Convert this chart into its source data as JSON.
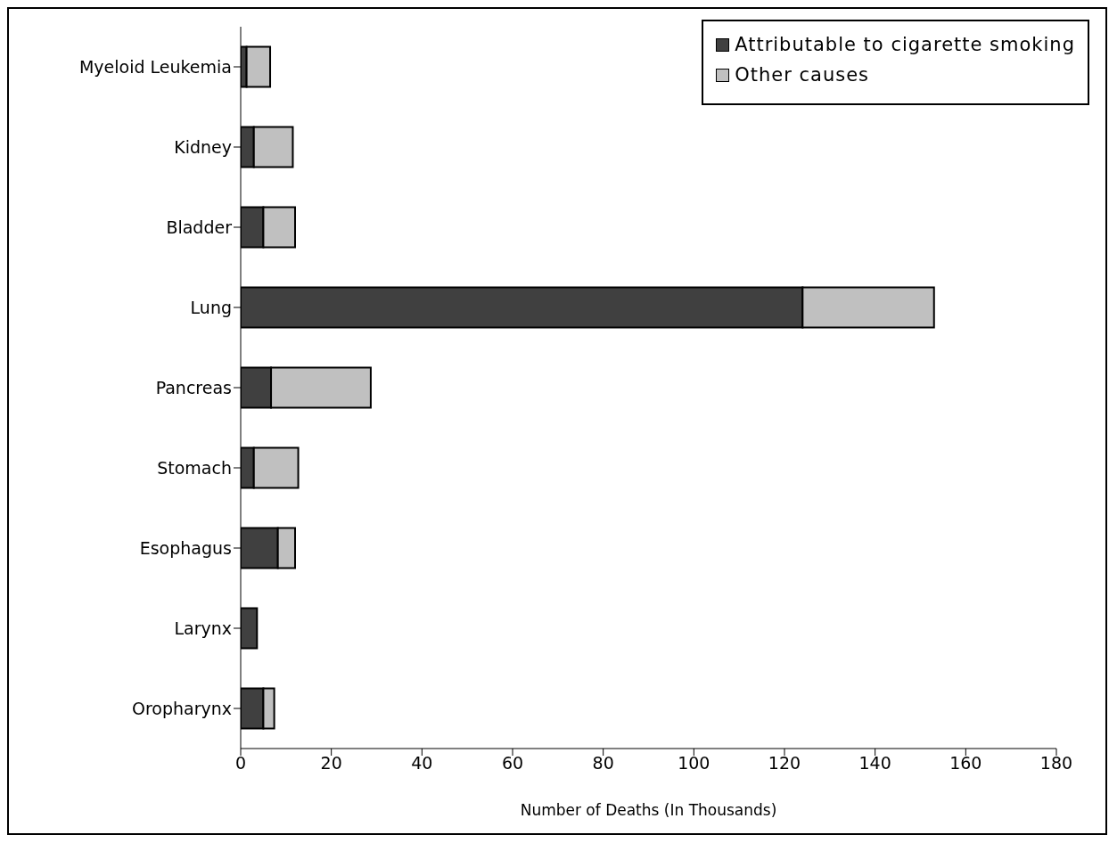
{
  "chart_data": {
    "type": "bar",
    "orientation": "horizontal",
    "stacked": true,
    "xlabel": "Number of Deaths (In Thousands)",
    "categories": [
      "Myeloid Leukemia",
      "Kidney",
      "Bladder",
      "Lung",
      "Pancreas",
      "Stomach",
      "Esophagus",
      "Larynx",
      "Oropharynx"
    ],
    "series": [
      {
        "name": "Attributable to cigarette smoking",
        "color": "#404040",
        "values": [
          1.3,
          2.9,
          5,
          124,
          6.7,
          2.9,
          8.2,
          3.6,
          5
        ]
      },
      {
        "name": "Other causes",
        "color": "#c0c0c0",
        "values": [
          5.2,
          8.6,
          7,
          29,
          22,
          9.8,
          3.8,
          0,
          2.4
        ]
      }
    ],
    "xlim": [
      0,
      180
    ],
    "xticks": [
      0,
      20,
      40,
      60,
      80,
      100,
      120,
      140,
      160,
      180
    ],
    "legend": "top right"
  }
}
